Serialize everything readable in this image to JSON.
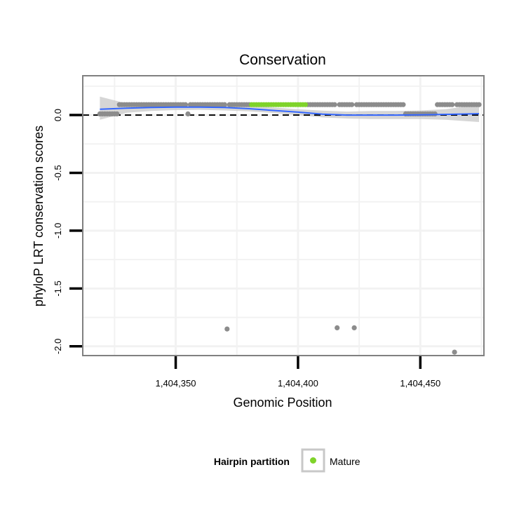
{
  "chart_data": {
    "type": "scatter",
    "title": "Conservation",
    "xlabel": "Genomic Position",
    "ylabel": "phyloP LRT conservation scores",
    "xlim": [
      1404312,
      1404476
    ],
    "ylim": [
      -2.08,
      0.34
    ],
    "x_ticks": [
      1404350,
      1404400,
      1404450
    ],
    "x_tick_labels": [
      "1,404,350",
      "1,404,400",
      "1,404,450"
    ],
    "y_ticks": [
      0.0,
      -0.5,
      -1.0,
      -1.5,
      -2.0
    ],
    "y_tick_labels": [
      "0.0",
      "-0.5",
      "-1.0",
      "-1.5",
      "-2.0"
    ],
    "grid": true,
    "reference_line": {
      "y": 0,
      "style": "dashed",
      "color": "#000000"
    },
    "series": [
      {
        "color": "#8c8c8c",
        "points": [
          [
            1404319,
            0.01
          ],
          [
            1404320,
            0.01
          ],
          [
            1404321,
            0.01
          ],
          [
            1404322,
            0.01
          ],
          [
            1404323,
            0.01
          ],
          [
            1404324,
            0.01
          ],
          [
            1404325,
            0.01
          ],
          [
            1404326,
            0.01
          ],
          [
            1404327,
            0.09
          ],
          [
            1404328,
            0.09
          ],
          [
            1404329,
            0.09
          ],
          [
            1404330,
            0.09
          ],
          [
            1404331,
            0.09
          ],
          [
            1404332,
            0.09
          ],
          [
            1404333,
            0.09
          ],
          [
            1404334,
            0.09
          ],
          [
            1404335,
            0.09
          ],
          [
            1404336,
            0.09
          ],
          [
            1404337,
            0.09
          ],
          [
            1404338,
            0.09
          ],
          [
            1404339,
            0.09
          ],
          [
            1404340,
            0.09
          ],
          [
            1404341,
            0.09
          ],
          [
            1404342,
            0.09
          ],
          [
            1404343,
            0.09
          ],
          [
            1404344,
            0.09
          ],
          [
            1404345,
            0.09
          ],
          [
            1404346,
            0.09
          ],
          [
            1404347,
            0.09
          ],
          [
            1404348,
            0.09
          ],
          [
            1404349,
            0.09
          ],
          [
            1404350,
            0.09
          ],
          [
            1404351,
            0.09
          ],
          [
            1404352,
            0.09
          ],
          [
            1404353,
            0.09
          ],
          [
            1404354,
            0.09
          ],
          [
            1404355,
            0.01
          ],
          [
            1404356,
            0.09
          ],
          [
            1404357,
            0.09
          ],
          [
            1404358,
            0.09
          ],
          [
            1404359,
            0.09
          ],
          [
            1404360,
            0.09
          ],
          [
            1404361,
            0.09
          ],
          [
            1404362,
            0.09
          ],
          [
            1404363,
            0.09
          ],
          [
            1404364,
            0.09
          ],
          [
            1404365,
            0.09
          ],
          [
            1404366,
            0.09
          ],
          [
            1404367,
            0.09
          ],
          [
            1404368,
            0.09
          ],
          [
            1404369,
            0.09
          ],
          [
            1404370,
            0.09
          ],
          [
            1404371,
            -1.85
          ],
          [
            1404372,
            0.09
          ],
          [
            1404373,
            0.09
          ],
          [
            1404374,
            0.09
          ],
          [
            1404375,
            0.09
          ],
          [
            1404376,
            0.09
          ],
          [
            1404377,
            0.09
          ],
          [
            1404378,
            0.09
          ],
          [
            1404379,
            0.09
          ],
          [
            1404380,
            0.09
          ],
          [
            1404404,
            0.09
          ],
          [
            1404405,
            0.09
          ],
          [
            1404406,
            0.09
          ],
          [
            1404407,
            0.09
          ],
          [
            1404408,
            0.09
          ],
          [
            1404409,
            0.09
          ],
          [
            1404410,
            0.09
          ],
          [
            1404411,
            0.09
          ],
          [
            1404412,
            0.09
          ],
          [
            1404413,
            0.09
          ],
          [
            1404414,
            0.09
          ],
          [
            1404415,
            0.09
          ],
          [
            1404416,
            -1.84
          ],
          [
            1404417,
            0.09
          ],
          [
            1404418,
            0.09
          ],
          [
            1404419,
            0.09
          ],
          [
            1404420,
            0.09
          ],
          [
            1404421,
            0.09
          ],
          [
            1404422,
            0.09
          ],
          [
            1404423,
            -1.84
          ],
          [
            1404424,
            0.09
          ],
          [
            1404425,
            0.09
          ],
          [
            1404426,
            0.09
          ],
          [
            1404427,
            0.09
          ],
          [
            1404428,
            0.09
          ],
          [
            1404429,
            0.09
          ],
          [
            1404430,
            0.09
          ],
          [
            1404431,
            0.09
          ],
          [
            1404432,
            0.09
          ],
          [
            1404433,
            0.09
          ],
          [
            1404434,
            0.09
          ],
          [
            1404435,
            0.09
          ],
          [
            1404436,
            0.09
          ],
          [
            1404437,
            0.09
          ],
          [
            1404438,
            0.09
          ],
          [
            1404439,
            0.09
          ],
          [
            1404440,
            0.09
          ],
          [
            1404441,
            0.09
          ],
          [
            1404442,
            0.09
          ],
          [
            1404443,
            0.09
          ],
          [
            1404444,
            0.01
          ],
          [
            1404445,
            0.01
          ],
          [
            1404446,
            0.01
          ],
          [
            1404447,
            0.01
          ],
          [
            1404448,
            0.01
          ],
          [
            1404449,
            0.01
          ],
          [
            1404450,
            0.01
          ],
          [
            1404451,
            0.01
          ],
          [
            1404452,
            0.01
          ],
          [
            1404453,
            0.01
          ],
          [
            1404454,
            0.01
          ],
          [
            1404455,
            0.01
          ],
          [
            1404456,
            0.01
          ],
          [
            1404457,
            0.09
          ],
          [
            1404458,
            0.09
          ],
          [
            1404459,
            0.09
          ],
          [
            1404460,
            0.09
          ],
          [
            1404461,
            0.09
          ],
          [
            1404462,
            0.09
          ],
          [
            1404463,
            0.09
          ],
          [
            1404464,
            -2.05
          ],
          [
            1404465,
            0.09
          ],
          [
            1404466,
            0.09
          ],
          [
            1404467,
            0.09
          ],
          [
            1404468,
            0.09
          ],
          [
            1404469,
            0.09
          ],
          [
            1404470,
            0.09
          ],
          [
            1404471,
            0.09
          ],
          [
            1404472,
            0.09
          ],
          [
            1404473,
            0.09
          ],
          [
            1404474,
            0.09
          ]
        ]
      },
      {
        "name": "Mature",
        "color": "#7fd32a",
        "points": [
          [
            1404381,
            0.09
          ],
          [
            1404382,
            0.09
          ],
          [
            1404383,
            0.09
          ],
          [
            1404384,
            0.09
          ],
          [
            1404385,
            0.09
          ],
          [
            1404386,
            0.09
          ],
          [
            1404387,
            0.09
          ],
          [
            1404388,
            0.09
          ],
          [
            1404389,
            0.09
          ],
          [
            1404390,
            0.09
          ],
          [
            1404391,
            0.09
          ],
          [
            1404392,
            0.09
          ],
          [
            1404393,
            0.09
          ],
          [
            1404394,
            0.09
          ],
          [
            1404395,
            0.09
          ],
          [
            1404396,
            0.09
          ],
          [
            1404397,
            0.09
          ],
          [
            1404398,
            0.09
          ],
          [
            1404399,
            0.09
          ],
          [
            1404400,
            0.09
          ],
          [
            1404401,
            0.09
          ],
          [
            1404402,
            0.09
          ],
          [
            1404403,
            0.09
          ]
        ]
      }
    ],
    "smooth": {
      "color": "#3366ff",
      "band_color": "#c8c8c8",
      "x": [
        1404319,
        1404330,
        1404340,
        1404350,
        1404360,
        1404370,
        1404380,
        1404390,
        1404400,
        1404410,
        1404420,
        1404430,
        1404440,
        1404450,
        1404460,
        1404474
      ],
      "y": [
        0.05,
        0.06,
        0.065,
        0.068,
        0.068,
        0.065,
        0.055,
        0.04,
        0.025,
        0.008,
        0.0,
        0.0,
        0.0,
        0.002,
        0.006,
        0.012
      ],
      "lower": [
        -0.04,
        0.02,
        0.035,
        0.043,
        0.045,
        0.04,
        0.032,
        0.018,
        0.0,
        -0.02,
        -0.03,
        -0.035,
        -0.035,
        -0.035,
        -0.04,
        -0.06
      ],
      "upper": [
        0.16,
        0.1,
        0.095,
        0.095,
        0.092,
        0.09,
        0.08,
        0.065,
        0.05,
        0.038,
        0.03,
        0.035,
        0.035,
        0.04,
        0.05,
        0.09
      ]
    },
    "legend": {
      "placement": "bottom",
      "title": "Hairpin partition",
      "entries": [
        {
          "label": "Mature",
          "color": "#7fd32a"
        }
      ]
    }
  }
}
